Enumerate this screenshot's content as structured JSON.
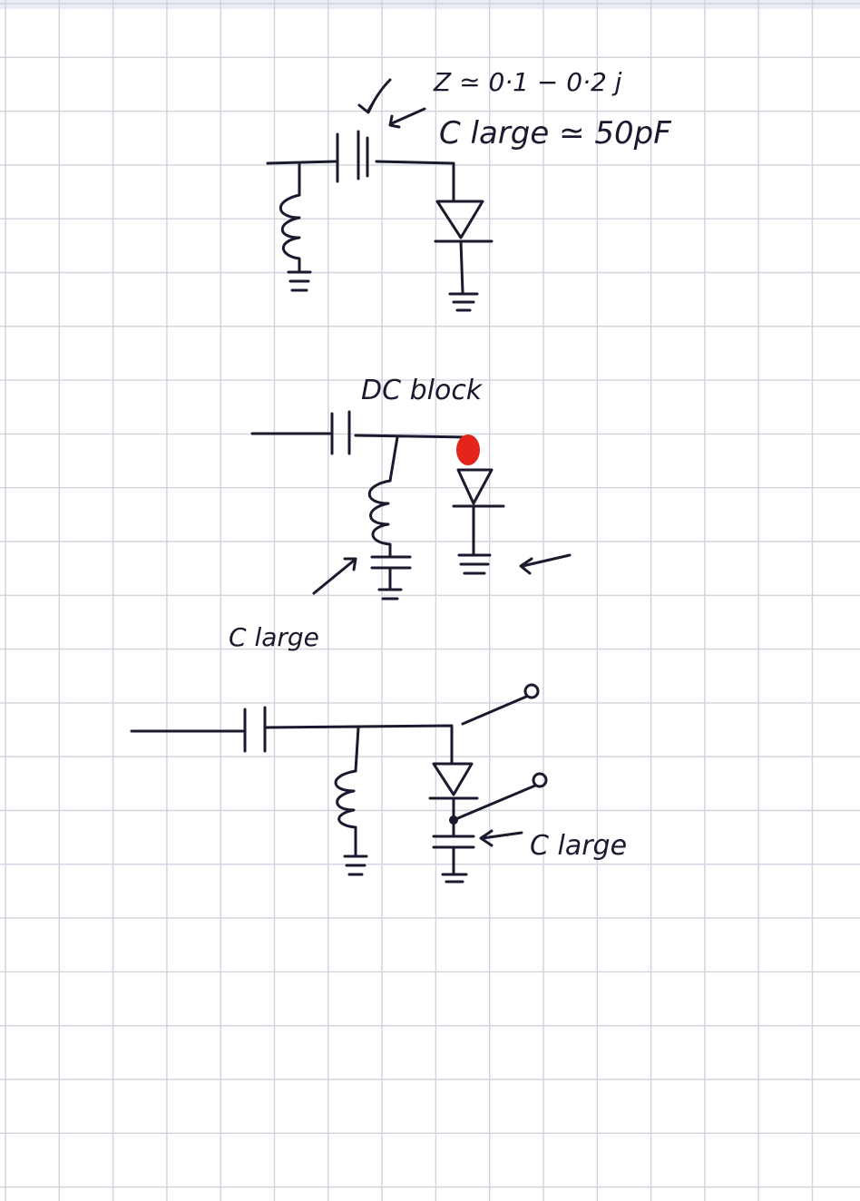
{
  "page": {
    "background": "#ffffff",
    "grid_color": "#cfd3dc",
    "ink_color": "#1a1a2e",
    "marker_color": "#e3241b"
  },
  "annotations": {
    "impedance": "Z ≃ 0·1 − 0·2 j",
    "c_large_1": "C large ≃ 50pF",
    "dc_block": "DC block",
    "c_large_2": "C large",
    "c_large_3": "C large"
  }
}
